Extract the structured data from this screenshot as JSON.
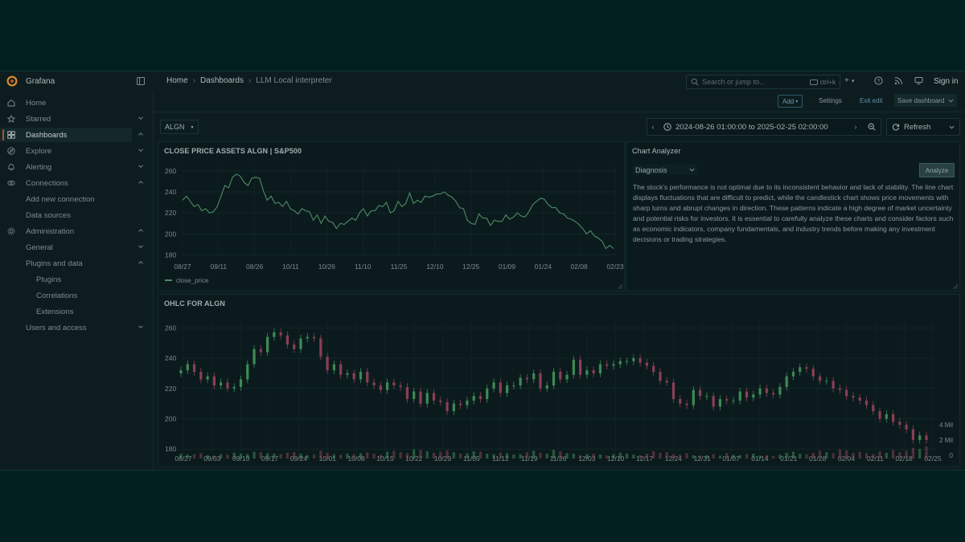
{
  "app": {
    "name": "Grafana",
    "sign_in": "Sign in"
  },
  "breadcrumb": [
    "Home",
    "Dashboards",
    "LLM Local interpreter"
  ],
  "search": {
    "placeholder": "Search or jump to...",
    "shortcut": "ctrl+k"
  },
  "sidebar": {
    "items": [
      {
        "label": "Home",
        "icon": "home-icon",
        "level": 0
      },
      {
        "label": "Starred",
        "icon": "star-icon",
        "level": 0,
        "chevron": "down"
      },
      {
        "label": "Dashboards",
        "icon": "dashboards-icon",
        "level": 0,
        "chevron": "up",
        "active": true
      },
      {
        "label": "Explore",
        "icon": "explore-icon",
        "level": 0,
        "chevron": "down"
      },
      {
        "label": "Alerting",
        "icon": "bell-icon",
        "level": 0,
        "chevron": "down"
      },
      {
        "label": "Connections",
        "icon": "connections-icon",
        "level": 0,
        "chevron": "up"
      },
      {
        "label": "Add new connection",
        "level": 1
      },
      {
        "label": "Data sources",
        "level": 1
      },
      {
        "label": "Administration",
        "icon": "gear-icon",
        "level": 0,
        "chevron": "up"
      },
      {
        "label": "General",
        "level": 1,
        "chevron": "down"
      },
      {
        "label": "Plugins and data",
        "level": 1,
        "chevron": "up"
      },
      {
        "label": "Plugins",
        "level": 2
      },
      {
        "label": "Correlations",
        "level": 2
      },
      {
        "label": "Extensions",
        "level": 2
      },
      {
        "label": "Users and access",
        "level": 1,
        "chevron": "down"
      }
    ]
  },
  "toolbar": {
    "add": "Add",
    "settings": "Settings",
    "exit_edit": "Exit edit",
    "save_dashboard": "Save dashboard"
  },
  "variable": {
    "value": "ALGN"
  },
  "time_range": {
    "label": "2024-08-26 01:00:00 to 2025-02-25 02:00:00",
    "refresh": "Refresh"
  },
  "colors": {
    "background": "#02201f",
    "panel": "#0b1b1d",
    "line": "#4f8a65",
    "candle_up": "#3f8a55",
    "candle_down": "#8a3f55",
    "accent": "#b3522f"
  },
  "line_panel": {
    "title": "CLOSE PRICE ASSETS ALGN | S&P500"
  },
  "analyzer": {
    "title": "Chart Analyzer",
    "mode": "Diagnosis",
    "button": "Analyze",
    "text": "The stock's performance is not optimal due to its inconsistent behavior and lack of stability. The line chart displays fluctuations that are difficult to predict, while the candlestick chart shows price movements with sharp turns and abrupt changes in direction. These patterns indicate a high degree of market uncertainty and potential risks for investors. It is essential to carefully analyze these charts and consider factors such as economic indicators, company fundamentals, and industry trends before making any investment decisions or trading strategies."
  },
  "ohlc_panel": {
    "title": "OHLC FOR ALGN"
  },
  "chart_data": [
    {
      "type": "line",
      "title": "CLOSE PRICE ASSETS ALGN | S&P500",
      "legend": [
        "close_price"
      ],
      "legend_position": "bottom-left",
      "y_ticks": [
        180,
        200,
        220,
        240,
        260
      ],
      "ylim": [
        178,
        266
      ],
      "x_ticks": [
        "08/27",
        "09/11",
        "08/26",
        "10/11",
        "10/26",
        "11/10",
        "11/25",
        "12/10",
        "12/25",
        "01/09",
        "01/24",
        "02/08",
        "02/23"
      ],
      "series": [
        {
          "name": "close_price",
          "values": [
            232,
            236,
            231,
            226,
            228,
            222,
            224,
            220,
            221,
            226,
            236,
            246,
            244,
            254,
            257,
            255,
            249,
            246,
            253,
            254,
            253,
            241,
            232,
            236,
            229,
            230,
            226,
            231,
            224,
            222,
            219,
            224,
            222,
            221,
            213,
            218,
            210,
            217,
            212,
            211,
            205,
            210,
            209,
            212,
            215,
            213,
            220,
            224,
            217,
            222,
            222,
            227,
            226,
            230,
            220,
            222,
            231,
            226,
            229,
            239,
            229,
            232,
            230,
            236,
            235,
            236,
            238,
            238,
            240,
            237,
            235,
            231,
            225,
            224,
            213,
            210,
            209,
            219,
            215,
            215,
            208,
            213,
            212,
            212,
            218,
            214,
            216,
            220,
            217,
            216,
            221,
            228,
            231,
            234,
            233,
            228,
            225,
            225,
            220,
            219,
            215,
            214,
            212,
            209,
            205,
            200,
            203,
            198,
            196,
            193,
            186,
            189,
            186
          ]
        }
      ]
    },
    {
      "type": "candlestick",
      "title": "OHLC FOR ALGN",
      "y_ticks": [
        180,
        200,
        220,
        240,
        260
      ],
      "ylim": [
        178,
        266
      ],
      "volume_ticks": [
        "4 Mil",
        "2 Mil",
        "0"
      ],
      "x_ticks": [
        "08/27",
        "09/03",
        "09/10",
        "09/17",
        "09/24",
        "10/01",
        "10/08",
        "10/15",
        "10/22",
        "10/29",
        "11/05",
        "11/12",
        "11/19",
        "11/26",
        "12/03",
        "12/10",
        "12/17",
        "12/24",
        "12/31",
        "01/07",
        "01/14",
        "01/21",
        "01/28",
        "02/04",
        "02/11",
        "02/18",
        "02/25"
      ],
      "close": [
        232,
        236,
        231,
        226,
        228,
        222,
        224,
        220,
        221,
        226,
        236,
        246,
        244,
        254,
        257,
        255,
        249,
        246,
        253,
        254,
        253,
        241,
        232,
        236,
        229,
        230,
        226,
        231,
        224,
        222,
        219,
        224,
        222,
        221,
        213,
        218,
        210,
        217,
        212,
        211,
        205,
        210,
        209,
        212,
        215,
        213,
        220,
        224,
        217,
        222,
        222,
        227,
        226,
        230,
        220,
        222,
        231,
        226,
        229,
        239,
        229,
        232,
        230,
        236,
        235,
        236,
        238,
        238,
        240,
        237,
        235,
        231,
        225,
        224,
        213,
        210,
        209,
        219,
        215,
        215,
        208,
        213,
        212,
        212,
        218,
        214,
        216,
        220,
        217,
        216,
        221,
        228,
        231,
        234,
        233,
        228,
        225,
        225,
        220,
        219,
        215,
        214,
        212,
        209,
        205,
        200,
        203,
        198,
        196,
        193,
        186,
        189,
        186
      ],
      "volume": [
        1.0,
        0.8,
        0.9,
        1.1,
        0.7,
        0.6,
        0.9,
        0.8,
        1.2,
        1.0,
        0.9,
        1.4,
        1.3,
        1.1,
        1.0,
        0.9,
        1.2,
        1.3,
        1.0,
        0.7,
        0.8,
        1.6,
        1.2,
        0.9,
        0.8,
        1.0,
        0.9,
        1.1,
        1.3,
        1.0,
        0.8,
        1.4,
        1.6,
        1.3,
        1.1,
        1.9,
        1.8,
        1.5,
        1.2,
        1.4,
        1.7,
        1.3,
        1.0,
        1.1,
        1.5,
        1.4,
        1.0,
        0.9,
        1.2,
        1.1,
        0.8,
        0.9,
        1.3,
        1.6,
        1.2,
        1.0,
        1.8,
        1.5,
        1.1,
        1.0,
        0.7,
        0.9,
        1.0,
        0.8,
        0.6,
        0.9,
        1.2,
        1.0,
        0.8,
        0.7,
        1.0,
        1.5,
        1.2,
        1.3,
        0.9,
        0.8,
        1.1,
        0.7,
        0.6,
        0.7,
        0.9,
        0.6,
        1.1,
        0.8,
        0.7,
        0.9,
        1.0,
        0.6,
        0.7,
        0.5,
        0.8,
        1.2,
        1.4,
        1.0,
        0.9,
        1.2,
        1.6,
        1.3,
        1.1,
        1.9,
        1.7,
        1.2,
        1.4,
        1.1,
        0.9,
        1.5,
        1.2,
        1.8,
        1.3,
        1.6,
        2.2,
        2.0,
        2.5
      ]
    }
  ]
}
